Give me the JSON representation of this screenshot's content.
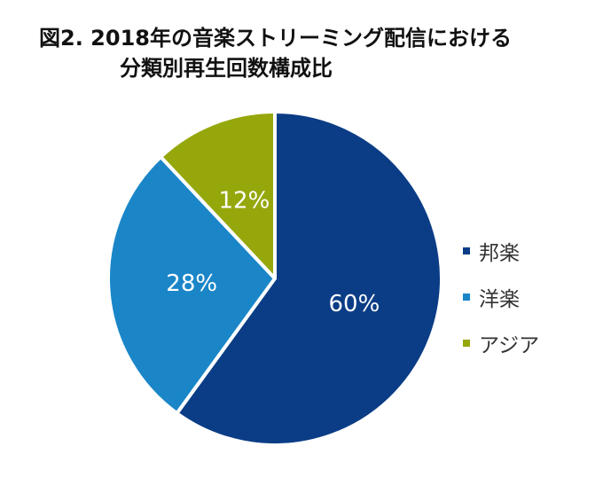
{
  "chart_data": {
    "type": "pie",
    "title_line1": "図2. 2018年の音楽ストリーミング配信における",
    "title_line2": "分類別再生回数構成比",
    "categories": [
      "邦楽",
      "洋楽",
      "アジア"
    ],
    "values": [
      60,
      28,
      12
    ],
    "labels": [
      "60%",
      "28%",
      "12%"
    ],
    "colors": [
      "#0b3d86",
      "#1a86c8",
      "#96a70c"
    ],
    "start_angle_deg": 0,
    "direction": "clockwise",
    "legend_position": "right"
  }
}
